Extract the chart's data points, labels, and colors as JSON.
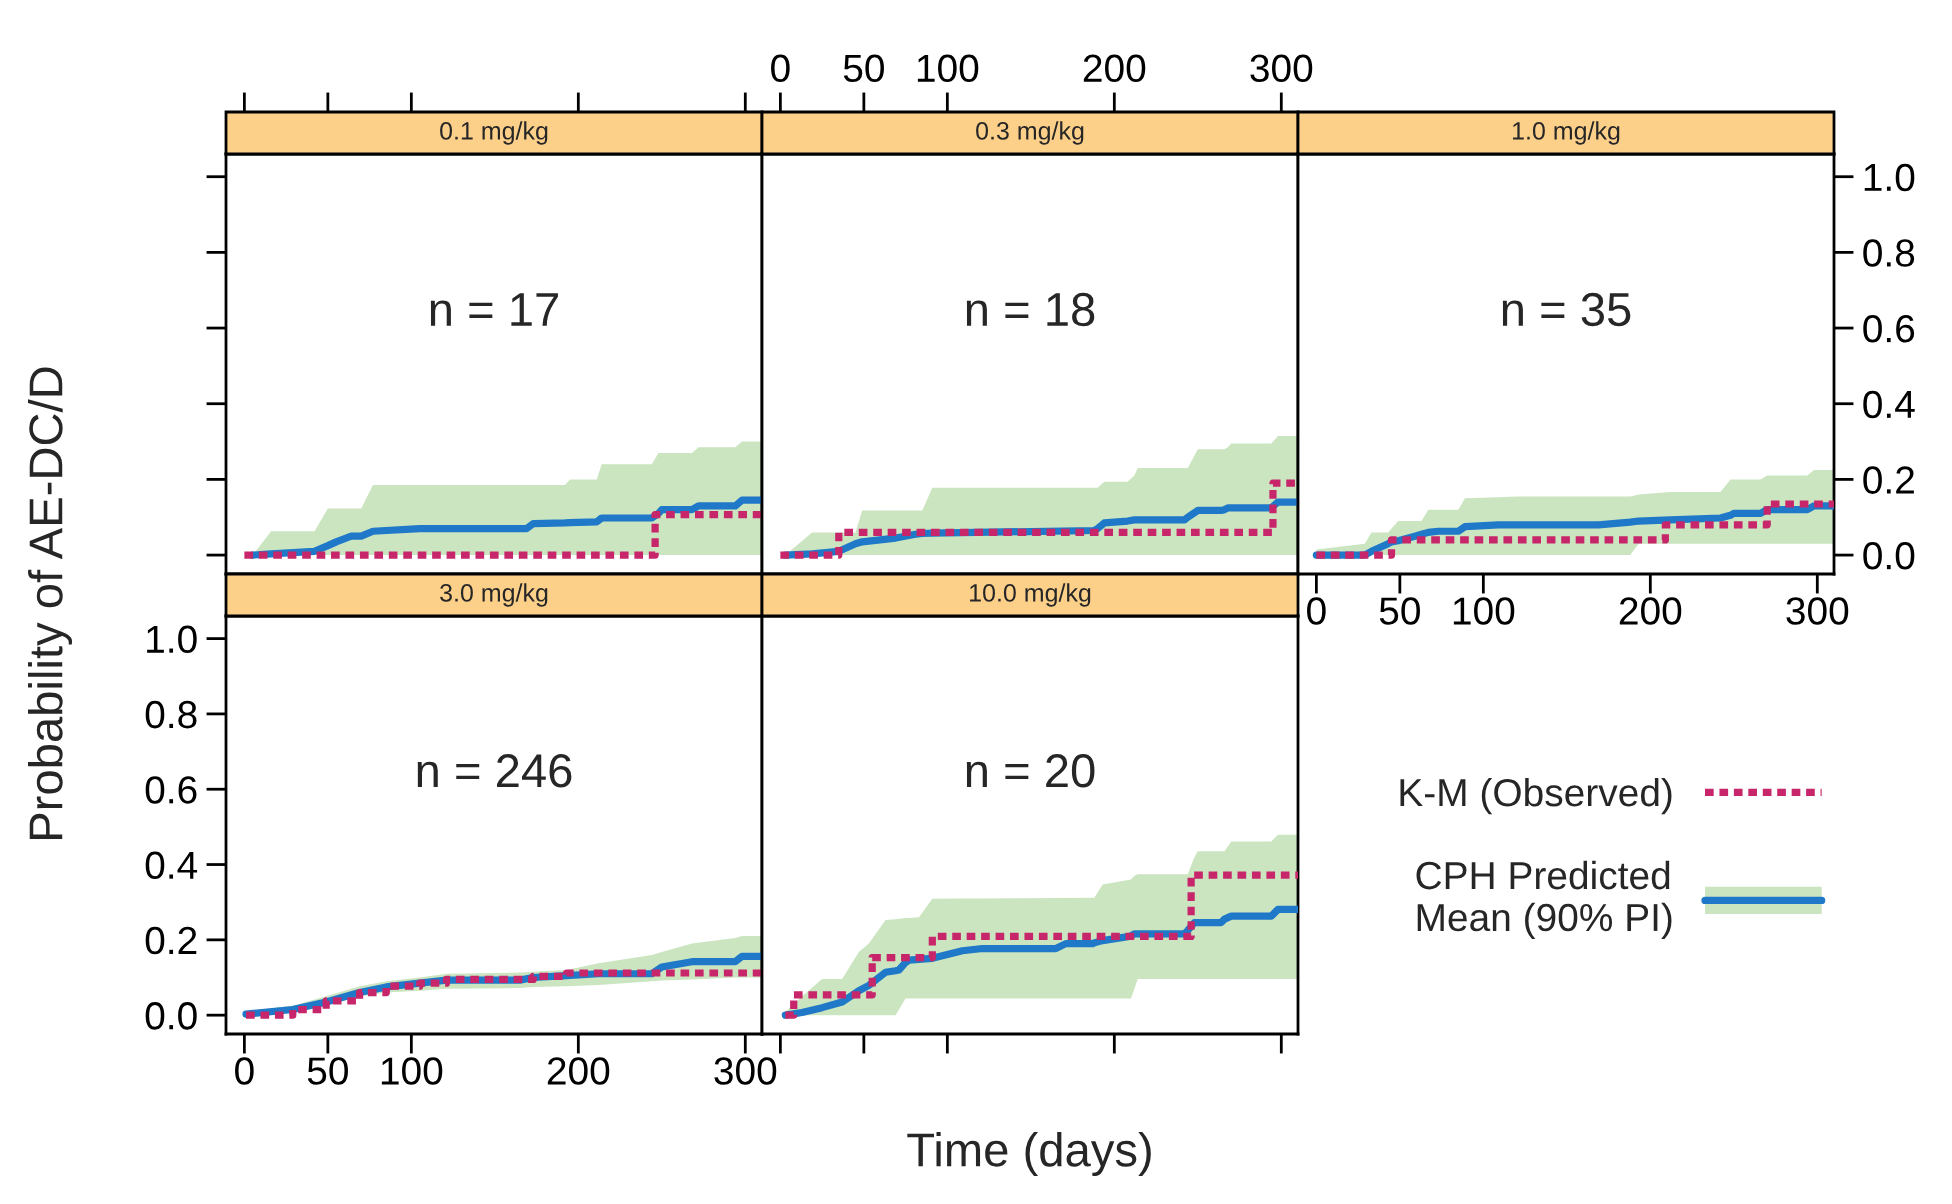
{
  "chart_data": [
    {
      "type": "line",
      "title": "0.1 mg/kg",
      "xlim": [
        -11,
        310
      ],
      "xticks": [
        0,
        50,
        100,
        200,
        300
      ],
      "ylim": [
        -0.05,
        1.06
      ],
      "yticks": [
        0,
        0.2,
        0.4,
        0.6,
        0.8,
        1.0
      ],
      "tick_labels": false,
      "annotations": [
        "n = 17"
      ],
      "series": [
        {
          "type": "step",
          "color": "#c8266b",
          "line_style": "dotted",
          "x": [
            0,
            246,
            310
          ],
          "values": [
            0,
            0.107,
            0.107
          ]
        },
        {
          "type": "line",
          "color": "#1f78c8",
          "line_style": "solid",
          "x": [
            5,
            16,
            42,
            50,
            55,
            64,
            70,
            77,
            105,
            169,
            173,
            192,
            195,
            211,
            214,
            244,
            248,
            250,
            268,
            272,
            294,
            298,
            310
          ],
          "values": [
            0,
            0.003,
            0.01,
            0.025,
            0.035,
            0.05,
            0.05,
            0.063,
            0.07,
            0.07,
            0.083,
            0.085,
            0.086,
            0.088,
            0.098,
            0.098,
            0.11,
            0.12,
            0.12,
            0.13,
            0.13,
            0.145,
            0.145
          ],
          "lower": [
            0,
            0,
            0,
            0,
            0,
            0,
            0,
            0,
            0,
            0,
            0,
            0,
            0,
            0,
            0,
            0,
            0,
            0,
            0,
            0,
            0,
            0,
            0
          ],
          "upper": [
            0,
            0.063,
            0.063,
            0.123,
            0.123,
            0.123,
            0.123,
            0.185,
            0.185,
            0.185,
            0.185,
            0.185,
            0.2,
            0.2,
            0.24,
            0.24,
            0.27,
            0.27,
            0.27,
            0.285,
            0.285,
            0.3,
            0.3
          ]
        }
      ]
    },
    {
      "type": "line",
      "title": "0.3 mg/kg",
      "xlim": [
        -11,
        310
      ],
      "xticks": [
        0,
        50,
        100,
        200,
        300
      ],
      "ylim": [
        -0.05,
        1.06
      ],
      "tick_labels": "x",
      "annotations": [
        "n = 18"
      ],
      "series": [
        {
          "type": "step",
          "color": "#c8266b",
          "line_style": "dotted",
          "x": [
            0,
            35,
            295,
            310
          ],
          "values": [
            0,
            0.06,
            0.19,
            0.19
          ]
        },
        {
          "type": "line",
          "color": "#1f78c8",
          "line_style": "solid",
          "x": [
            3,
            19,
            35,
            45,
            49,
            69,
            81,
            85,
            91,
            188,
            190,
            194,
            208,
            212,
            214,
            242,
            244,
            250,
            264,
            266,
            268,
            270,
            294,
            298,
            310
          ],
          "values": [
            0,
            0.003,
            0.01,
            0.03,
            0.035,
            0.045,
            0.055,
            0.057,
            0.058,
            0.065,
            0.07,
            0.085,
            0.09,
            0.093,
            0.093,
            0.093,
            0.1,
            0.118,
            0.118,
            0.12,
            0.125,
            0.125,
            0.125,
            0.14,
            0.14
          ],
          "lower": [
            0,
            0,
            0,
            0,
            0,
            0,
            0,
            0,
            0,
            0,
            0,
            0,
            0,
            0,
            0,
            0,
            0,
            0,
            0,
            0,
            0,
            0,
            0,
            0,
            0
          ],
          "upper": [
            0,
            0.06,
            0.06,
            0.06,
            0.118,
            0.118,
            0.118,
            0.118,
            0.178,
            0.178,
            0.178,
            0.194,
            0.194,
            0.21,
            0.23,
            0.23,
            0.23,
            0.28,
            0.28,
            0.28,
            0.285,
            0.295,
            0.295,
            0.315,
            0.315
          ]
        }
      ]
    },
    {
      "type": "line",
      "title": "1.0 mg/kg",
      "xlim": [
        -11,
        310
      ],
      "xticks": [
        0,
        50,
        100,
        200,
        300
      ],
      "ylim": [
        -0.05,
        1.06
      ],
      "yticks": [
        {
          "value": 0,
          "label": "0.0"
        },
        {
          "value": 0.2,
          "label": "0.2"
        },
        {
          "value": 0.4,
          "label": "0.4"
        },
        {
          "value": 0.6,
          "label": "0.6"
        },
        {
          "value": 0.8,
          "label": "0.8"
        },
        {
          "value": 1.0,
          "label": "1.0"
        }
      ],
      "annotations": [
        "n = 35"
      ],
      "series": [
        {
          "type": "step",
          "color": "#c8266b",
          "line_style": "dotted",
          "x": [
            0,
            45,
            209,
            270,
            310
          ],
          "values": [
            0,
            0.04,
            0.08,
            0.135,
            0.135
          ]
        },
        {
          "type": "line",
          "color": "#1f78c8",
          "line_style": "solid",
          "x": [
            0,
            29,
            33,
            43,
            45,
            49,
            59,
            63,
            67,
            73,
            85,
            89,
            109,
            120,
            169,
            188,
            193,
            212,
            242,
            248,
            250,
            266,
            270,
            294,
            298,
            310
          ],
          "values": [
            0,
            0,
            0.01,
            0.03,
            0.035,
            0.038,
            0.05,
            0.055,
            0.06,
            0.063,
            0.063,
            0.075,
            0.08,
            0.08,
            0.08,
            0.087,
            0.09,
            0.093,
            0.098,
            0.105,
            0.11,
            0.11,
            0.12,
            0.12,
            0.13,
            0.13
          ],
          "lower": [
            0,
            0,
            0,
            0,
            0,
            0,
            0,
            0,
            0,
            0,
            0,
            0,
            0,
            0,
            0,
            0,
            0.03,
            0.03,
            0.03,
            0.03,
            0.03,
            0.03,
            0.03,
            0.03,
            0.03,
            0.03
          ],
          "upper": [
            0.015,
            0.03,
            0.06,
            0.06,
            0.07,
            0.09,
            0.09,
            0.09,
            0.12,
            0.12,
            0.12,
            0.15,
            0.153,
            0.155,
            0.155,
            0.155,
            0.16,
            0.167,
            0.167,
            0.2,
            0.2,
            0.2,
            0.21,
            0.21,
            0.225,
            0.225
          ]
        }
      ]
    },
    {
      "type": "line",
      "title": "3.0 mg/kg",
      "xlim": [
        -11,
        310
      ],
      "xticks": [
        0,
        50,
        100,
        200,
        300
      ],
      "ylim": [
        -0.05,
        1.06
      ],
      "yticks": [
        {
          "value": 0,
          "label": "0.0"
        },
        {
          "value": 0.2,
          "label": "0.2"
        },
        {
          "value": 0.4,
          "label": "0.4"
        },
        {
          "value": 0.6,
          "label": "0.6"
        },
        {
          "value": 0.8,
          "label": "0.8"
        },
        {
          "value": 1.0,
          "label": "1.0"
        }
      ],
      "xlabel": "Time (days)",
      "ylabel": "Probability of AE-DC/D",
      "annotations": [
        "n = 246"
      ],
      "series": [
        {
          "type": "step",
          "color": "#c8266b",
          "line_style": "dotted",
          "x": [
            1,
            29,
            49,
            69,
            85,
            105,
            121,
            173,
            193,
            310
          ],
          "values": [
            0,
            0.015,
            0.038,
            0.06,
            0.077,
            0.085,
            0.095,
            0.103,
            0.112,
            0.112
          ]
        },
        {
          "type": "line",
          "color": "#1f78c8",
          "line_style": "solid",
          "x": [
            1,
            29,
            49,
            69,
            85,
            105,
            121,
            165,
            173,
            193,
            212,
            244,
            250,
            268,
            294,
            298,
            310
          ],
          "values": [
            0.003,
            0.015,
            0.035,
            0.06,
            0.075,
            0.085,
            0.093,
            0.093,
            0.1,
            0.105,
            0.11,
            0.11,
            0.128,
            0.142,
            0.142,
            0.156,
            0.156
          ],
          "lower": [
            0,
            0.01,
            0.025,
            0.05,
            0.06,
            0.065,
            0.07,
            0.072,
            0.075,
            0.077,
            0.08,
            0.09,
            0.092,
            0.095,
            0.1,
            0.1,
            0.1
          ],
          "upper": [
            0.01,
            0.025,
            0.05,
            0.077,
            0.09,
            0.1,
            0.11,
            0.113,
            0.115,
            0.12,
            0.138,
            0.16,
            0.168,
            0.19,
            0.205,
            0.21,
            0.21
          ]
        }
      ]
    },
    {
      "type": "line",
      "title": "10.0 mg/kg",
      "xlim": [
        -11,
        310
      ],
      "xticks": [
        0,
        50,
        100,
        200,
        300
      ],
      "ylim": [
        -0.05,
        1.06
      ],
      "tick_labels": false,
      "legend": "right",
      "annotations": [
        "n = 20"
      ],
      "series": [
        {
          "type": "step",
          "name": "K-M (Observed)",
          "color": "#c8266b",
          "line_style": "dotted",
          "x": [
            3,
            8,
            55,
            91,
            246,
            310
          ],
          "values": [
            0,
            0.054,
            0.153,
            0.209,
            0.372,
            0.372
          ]
        },
        {
          "type": "line",
          "name": "CPH Predicted\nMean (90% PI)",
          "color": "#1f78c8",
          "line_style": "solid",
          "x": [
            3,
            13,
            25,
            37,
            47,
            53,
            63,
            69,
            71,
            75,
            77,
            83,
            91,
            109,
            121,
            165,
            171,
            187,
            188,
            193,
            210,
            212,
            214,
            242,
            244,
            248,
            250,
            264,
            266,
            270,
            294,
            298,
            310
          ],
          "values": [
            0,
            0.007,
            0.02,
            0.035,
            0.065,
            0.079,
            0.114,
            0.118,
            0.12,
            0.14,
            0.146,
            0.148,
            0.151,
            0.171,
            0.177,
            0.177,
            0.19,
            0.19,
            0.192,
            0.198,
            0.21,
            0.216,
            0.216,
            0.216,
            0.225,
            0.246,
            0.246,
            0.246,
            0.255,
            0.263,
            0.263,
            0.281,
            0.281
          ],
          "lower": [
            0,
            0,
            0,
            0,
            0,
            0,
            0,
            0,
            0.015,
            0.044,
            0.044,
            0.044,
            0.044,
            0.044,
            0.044,
            0.044,
            0.044,
            0.044,
            0.044,
            0.044,
            0.044,
            0.07,
            0.096,
            0.096,
            0.096,
            0.096,
            0.096,
            0.096,
            0.096,
            0.096,
            0.096,
            0.096,
            0.096
          ],
          "upper": [
            0.009,
            0.05,
            0.096,
            0.096,
            0.168,
            0.19,
            0.253,
            0.255,
            0.256,
            0.258,
            0.258,
            0.26,
            0.309,
            0.31,
            0.31,
            0.311,
            0.311,
            0.312,
            0.312,
            0.347,
            0.36,
            0.37,
            0.374,
            0.374,
            0.374,
            0.42,
            0.435,
            0.435,
            0.435,
            0.461,
            0.461,
            0.479,
            0.479
          ]
        }
      ]
    }
  ]
}
